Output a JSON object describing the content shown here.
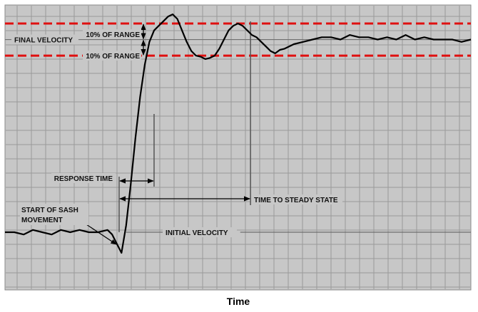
{
  "chart_data": {
    "type": "line",
    "xlabel": "Time",
    "ylabel": "",
    "title": "",
    "ylim": [
      0,
      100
    ],
    "xlim": [
      0,
      100
    ],
    "grid": true,
    "reference_lines": {
      "final_velocity": 93,
      "upper_band": 100,
      "lower_band": 86,
      "initial_velocity": 9,
      "sash_start_x": 24.5,
      "response_end_x": 32.0,
      "steady_state_x": 52.7
    },
    "annotations": {
      "final_velocity": "FINAL VELOCITY",
      "pct_upper": "10% OF RANGE",
      "pct_lower": "10% OF RANGE",
      "response_time": "RESPONSE TIME",
      "steady_state": "TIME TO STEADY STATE",
      "start_sash_1": "START OF SASH",
      "start_sash_2": "MOVEMENT",
      "initial_velocity": "INITIAL VELOCITY"
    },
    "series": [
      {
        "color": "#000000",
        "x": [
          0,
          2,
          4,
          6,
          8,
          10,
          12,
          14,
          16,
          18,
          20,
          22,
          23,
          24,
          25,
          26,
          27,
          28,
          29,
          30,
          31,
          32,
          33,
          34,
          35,
          36,
          37,
          38,
          39,
          40,
          41,
          42,
          43,
          44,
          45,
          46,
          47,
          48,
          49,
          50,
          51,
          52,
          53,
          54,
          55,
          56,
          57,
          58,
          59,
          60,
          62,
          64,
          66,
          68,
          70,
          72,
          74,
          76,
          78,
          80,
          82,
          84,
          86,
          88,
          90,
          92,
          94,
          96,
          98,
          100
        ],
        "y": [
          9,
          9,
          8,
          10,
          9,
          8,
          10,
          9,
          10,
          9,
          9,
          10,
          8,
          4,
          0,
          12,
          30,
          50,
          68,
          82,
          92,
          97,
          99,
          101,
          103,
          104,
          102,
          97,
          92,
          88,
          86,
          85.5,
          84.5,
          85,
          86,
          89,
          93,
          97,
          99,
          100,
          99,
          97,
          95,
          94,
          92,
          90,
          88,
          87,
          88.5,
          89,
          91,
          92,
          93,
          94,
          94,
          93,
          95,
          94,
          94,
          93,
          94,
          93,
          95,
          93,
          94,
          93,
          93,
          93,
          92,
          93
        ]
      }
    ]
  }
}
